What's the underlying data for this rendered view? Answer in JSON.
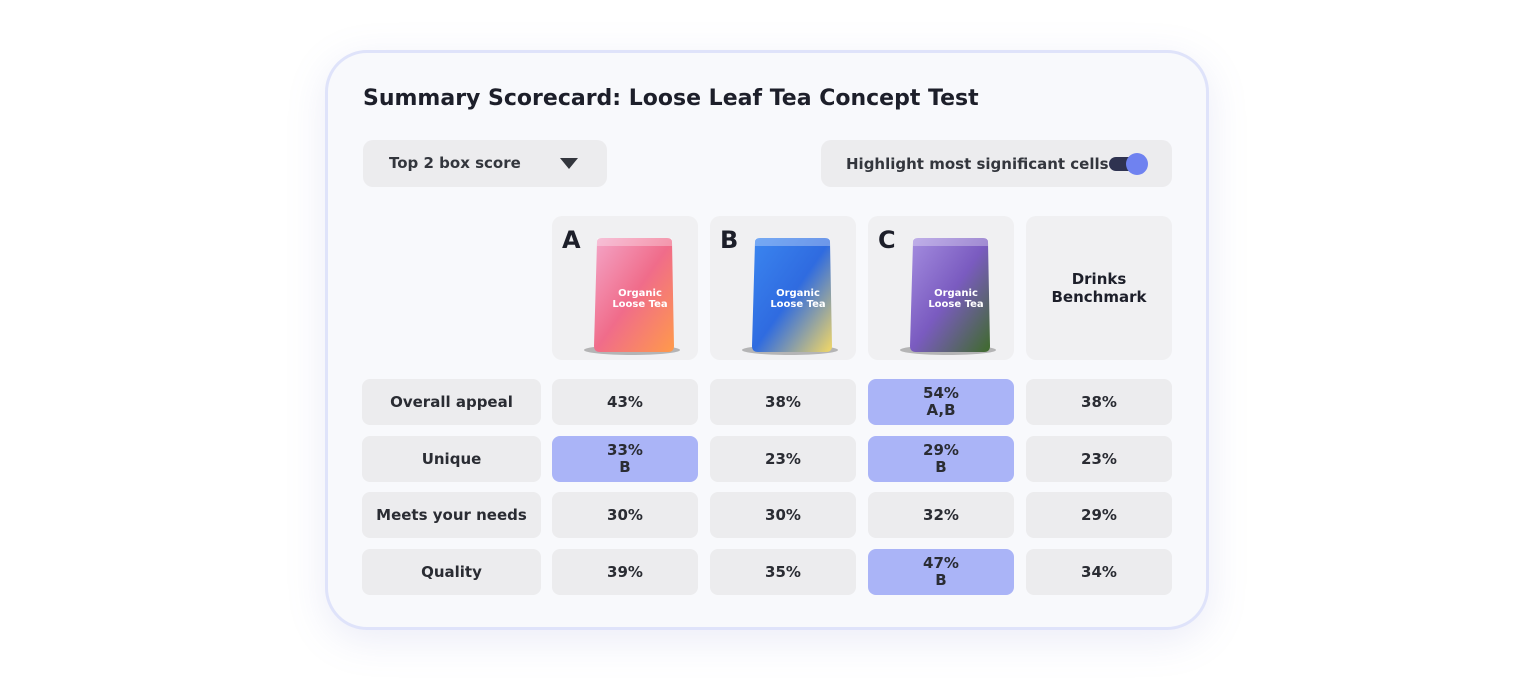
{
  "title": "Summary Scorecard: Loose Leaf Tea Concept Test",
  "dropdown": "Top 2 box score",
  "toggle": {
    "label": "Highlight most significant cells",
    "on": true
  },
  "columns": [
    {
      "letter": "A",
      "product_label": "Organic Loose Tea"
    },
    {
      "letter": "B",
      "product_label": "Organic Loose Tea"
    },
    {
      "letter": "C",
      "product_label": "Organic Loose Tea"
    },
    {
      "label": "Drinks Benchmark"
    }
  ],
  "rows": [
    {
      "label": "Overall appeal",
      "cells": [
        {
          "value": "43%"
        },
        {
          "value": "38%"
        },
        {
          "value": "54%",
          "sig": "A,B"
        },
        {
          "value": "38%"
        }
      ]
    },
    {
      "label": "Unique",
      "cells": [
        {
          "value": "33%",
          "sig": "B"
        },
        {
          "value": "23%"
        },
        {
          "value": "29%",
          "sig": "B"
        },
        {
          "value": "23%"
        }
      ]
    },
    {
      "label": "Meets your needs",
      "cells": [
        {
          "value": "30%"
        },
        {
          "value": "30%"
        },
        {
          "value": "32%"
        },
        {
          "value": "29%"
        }
      ]
    },
    {
      "label": "Quality",
      "cells": [
        {
          "value": "39%"
        },
        {
          "value": "35%"
        },
        {
          "value": "47%",
          "sig": "B"
        },
        {
          "value": "34%"
        }
      ]
    }
  ]
}
